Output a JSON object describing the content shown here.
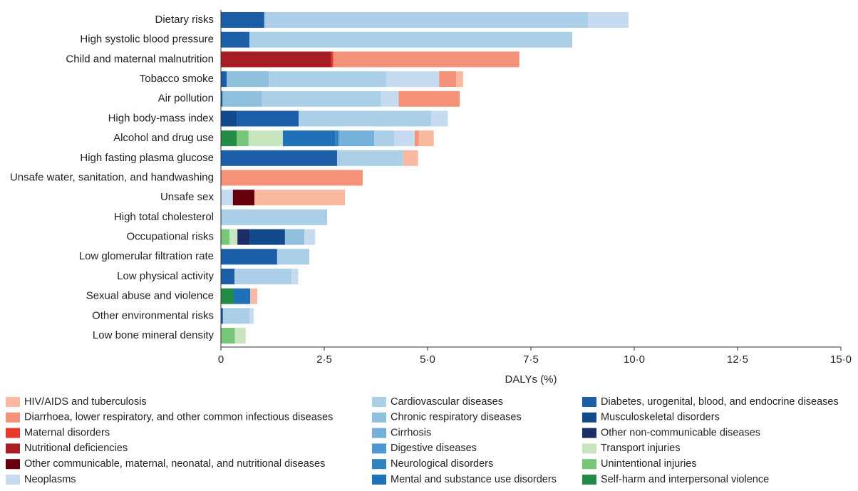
{
  "chart_data": {
    "type": "stacked-bar-horizontal",
    "x_label": "DALYs (%)",
    "categories": [
      "Dietary risks",
      "High systolic blood pressure",
      "Child and maternal malnutrition",
      "Tobacco smoke",
      "Air pollution",
      "High body-mass index",
      "Alcohol and drug use",
      "High fasting plasma glucose",
      "Unsafe water, sanitation, and handwashing",
      "Unsafe sex",
      "High total cholesterol",
      "Occupational risks",
      "Low glomerular filtration rate",
      "Low physical activity",
      "Sexual abuse and violence",
      "Other environmental risks",
      "Low bone mineral density"
    ],
    "xlim": [
      0,
      15
    ],
    "xticks": [
      0,
      {
        "value": 2.5,
        "label": "2·5"
      },
      {
        "value": 5,
        "label": "5·0"
      },
      {
        "value": 7.5,
        "label": "7·5"
      },
      {
        "value": 10,
        "label": "10·0"
      },
      {
        "value": 12.5,
        "label": "12·5"
      },
      {
        "value": 15,
        "label": "15·0"
      }
    ],
    "series": [
      {
        "name": "HIV/AIDS and tuberculosis",
        "color": "#f9b9a0",
        "values": [
          null,
          null,
          null,
          0.17,
          null,
          null,
          0.36,
          0.36,
          null,
          2.19,
          null,
          null,
          null,
          null,
          0.17,
          null,
          null
        ]
      },
      {
        "name": "Diarrhoea, lower respiratory, and other common infectious diseases",
        "color": "#f4937a",
        "values": [
          null,
          null,
          4.5,
          0.41,
          1.48,
          null,
          0.1,
          null,
          3.43,
          null,
          null,
          null,
          null,
          null,
          null,
          null,
          null
        ]
      },
      {
        "name": "Maternal disorders",
        "color": "#e8392e",
        "values": [
          null,
          null,
          0.05,
          null,
          null,
          null,
          null,
          null,
          null,
          null,
          null,
          null,
          null,
          null,
          null,
          null,
          null
        ]
      },
      {
        "name": "Nutritional deficiencies",
        "color": "#a61e23",
        "values": [
          null,
          null,
          2.67,
          null,
          null,
          null,
          null,
          null,
          null,
          null,
          null,
          null,
          null,
          null,
          null,
          null,
          null
        ]
      },
      {
        "name": "Other communicable, maternal, neonatal, and nutritional diseases",
        "color": "#67000d",
        "values": [
          null,
          null,
          null,
          null,
          null,
          null,
          null,
          null,
          null,
          0.52,
          null,
          null,
          null,
          null,
          null,
          null,
          null
        ]
      },
      {
        "name": "Neoplasms",
        "color": "#c6dbef",
        "values": [
          0.98,
          null,
          null,
          1.28,
          0.43,
          0.4,
          0.5,
          null,
          null,
          0.29,
          null,
          0.26,
          null,
          0.16,
          null,
          0.1,
          null
        ]
      },
      {
        "name": "Cardiovascular diseases",
        "color": "#aacfe7",
        "values": [
          7.83,
          7.81,
          null,
          2.84,
          2.88,
          3.21,
          0.48,
          1.6,
          null,
          null,
          2.57,
          null,
          0.78,
          1.38,
          null,
          0.64,
          null
        ]
      },
      {
        "name": "Chronic respiratory diseases",
        "color": "#8fc0de",
        "values": [
          null,
          null,
          null,
          1.02,
          0.95,
          null,
          null,
          null,
          null,
          null,
          null,
          0.47,
          null,
          null,
          null,
          null,
          null
        ]
      },
      {
        "name": "Cirrhosis",
        "color": "#74b0da",
        "values": [
          null,
          null,
          null,
          null,
          null,
          null,
          0.86,
          null,
          null,
          null,
          null,
          null,
          null,
          null,
          null,
          null,
          null
        ]
      },
      {
        "name": "Digestive diseases",
        "color": "#4f98cf",
        "values": [
          null,
          null,
          null,
          null,
          null,
          null,
          null,
          null,
          null,
          null,
          null,
          null,
          null,
          null,
          null,
          null,
          null
        ]
      },
      {
        "name": "Neurological disorders",
        "color": "#3182bd",
        "values": [
          null,
          null,
          null,
          null,
          null,
          null,
          0.09,
          null,
          null,
          null,
          null,
          null,
          null,
          null,
          null,
          null,
          null
        ]
      },
      {
        "name": "Mental and substance use disorders",
        "color": "#1f72b8",
        "values": [
          null,
          null,
          null,
          null,
          null,
          null,
          1.26,
          null,
          null,
          null,
          null,
          null,
          null,
          null,
          0.4,
          null,
          null
        ]
      },
      {
        "name": "Diabetes, urogenital, blood, and endocrine diseases",
        "color": "#1c5fa8",
        "values": [
          1.05,
          0.69,
          null,
          0.14,
          0.04,
          1.5,
          null,
          2.81,
          null,
          null,
          null,
          null,
          1.36,
          0.33,
          null,
          0.05,
          null
        ]
      },
      {
        "name": "Musculoskeletal disorders",
        "color": "#124a8c",
        "values": [
          null,
          null,
          null,
          null,
          null,
          0.38,
          null,
          null,
          null,
          null,
          null,
          0.86,
          null,
          null,
          null,
          null,
          null
        ]
      },
      {
        "name": "Other non-communicable diseases",
        "color": "#1b2f66",
        "values": [
          null,
          null,
          null,
          null,
          null,
          null,
          null,
          null,
          null,
          null,
          null,
          0.29,
          null,
          null,
          null,
          null,
          null
        ]
      },
      {
        "name": "Transport injuries",
        "color": "#c7e6c0",
        "values": [
          null,
          null,
          null,
          null,
          null,
          null,
          0.83,
          null,
          null,
          null,
          null,
          0.19,
          null,
          null,
          null,
          null,
          0.26
        ]
      },
      {
        "name": "Unintentional injuries",
        "color": "#78c679",
        "values": [
          null,
          null,
          null,
          null,
          null,
          null,
          0.29,
          null,
          null,
          null,
          null,
          0.21,
          null,
          null,
          null,
          null,
          0.34
        ]
      },
      {
        "name": "Self-harm and interpersonal violence",
        "color": "#238b45",
        "values": [
          null,
          null,
          null,
          null,
          null,
          null,
          0.38,
          null,
          null,
          null,
          null,
          null,
          null,
          null,
          0.31,
          null,
          null
        ]
      }
    ]
  }
}
